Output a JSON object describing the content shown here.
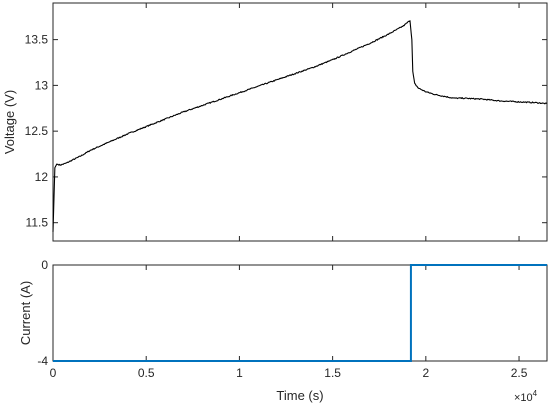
{
  "chart_data": [
    {
      "type": "line",
      "ylabel": "Voltage (V)",
      "xlim": [
        0,
        26500
      ],
      "ylim": [
        11.3,
        13.9
      ],
      "y_ticks": [
        11.5,
        12,
        12.5,
        13,
        13.5
      ],
      "y_tick_labels": [
        "11.5",
        "12",
        "12.5",
        "13",
        "13.5"
      ],
      "grid": false,
      "series": [
        {
          "color": "#000000",
          "x": [
            0,
            100,
            200,
            400,
            700,
            1000,
            1500,
            2000,
            3000,
            4000,
            5000,
            6000,
            7000,
            8000,
            9000,
            10000,
            11000,
            12000,
            13000,
            14000,
            15000,
            16000,
            17000,
            18000,
            18800,
            19150,
            19250,
            19300,
            19400,
            19600,
            20000,
            20500,
            21000,
            21500,
            22000,
            23000,
            24000,
            25000,
            26000,
            26500
          ],
          "y": [
            11.4,
            12.1,
            12.14,
            12.13,
            12.15,
            12.18,
            12.23,
            12.29,
            12.38,
            12.47,
            12.55,
            12.63,
            12.71,
            12.78,
            12.85,
            12.92,
            12.99,
            13.06,
            13.13,
            13.2,
            13.28,
            13.37,
            13.46,
            13.56,
            13.65,
            13.71,
            13.5,
            13.15,
            13.02,
            12.97,
            12.93,
            12.9,
            12.88,
            12.86,
            12.86,
            12.85,
            12.83,
            12.82,
            12.81,
            12.8
          ]
        }
      ]
    },
    {
      "type": "line",
      "xlabel": "Time (s)",
      "ylabel": "Current (A)",
      "xlim": [
        0,
        26500
      ],
      "ylim": [
        -4,
        0
      ],
      "y_ticks": [
        -4,
        0
      ],
      "y_tick_labels": [
        "-4",
        "0"
      ],
      "x_ticks": [
        0,
        5000,
        10000,
        15000,
        20000,
        25000
      ],
      "x_tick_labels": [
        "0",
        "0.5",
        "1",
        "1.5",
        "2",
        "2.5"
      ],
      "x_exponent_label": "×10^4",
      "grid": false,
      "series": [
        {
          "color": "#0072BD",
          "x": [
            0,
            19200,
            19200,
            26500
          ],
          "y": [
            -4,
            -4,
            0,
            0
          ]
        }
      ]
    }
  ]
}
